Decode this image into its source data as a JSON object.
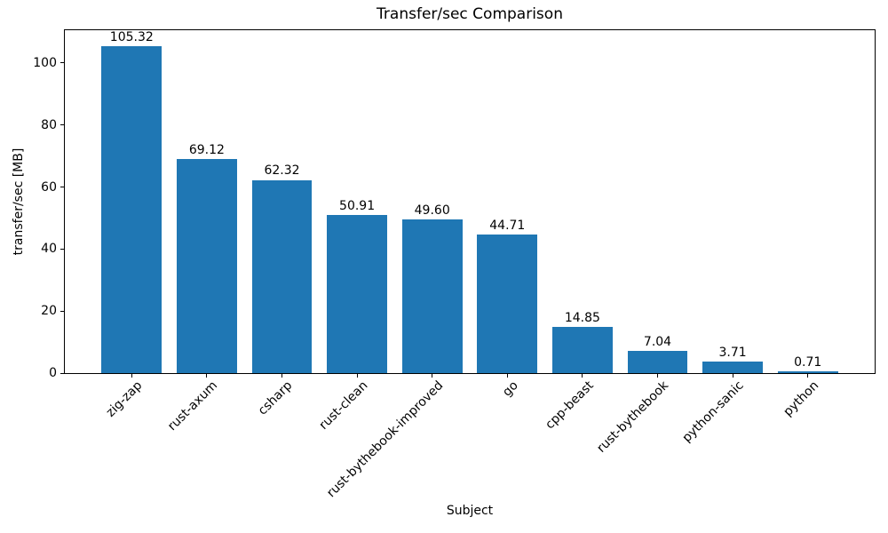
{
  "chart_data": {
    "type": "bar",
    "title": "Transfer/sec Comparison",
    "xlabel": "Subject",
    "ylabel": "transfer/sec [MB]",
    "categories": [
      "zig-zap",
      "rust-axum",
      "csharp",
      "rust-clean",
      "rust-bythebook-improved",
      "go",
      "cpp-beast",
      "rust-bythebook",
      "python-sanic",
      "python"
    ],
    "values": [
      105.32,
      69.12,
      62.32,
      50.91,
      49.6,
      44.71,
      14.85,
      7.04,
      3.71,
      0.71
    ],
    "value_label_decimals": 2,
    "bar_color": "#1f77b4",
    "axis_color": "#000000",
    "text_color": "#000000",
    "ylim": [
      0,
      110.6
    ],
    "yticks": [
      0,
      20,
      40,
      60,
      80,
      100
    ],
    "xtick_rotation": 45,
    "grid": false,
    "legend": "none"
  }
}
